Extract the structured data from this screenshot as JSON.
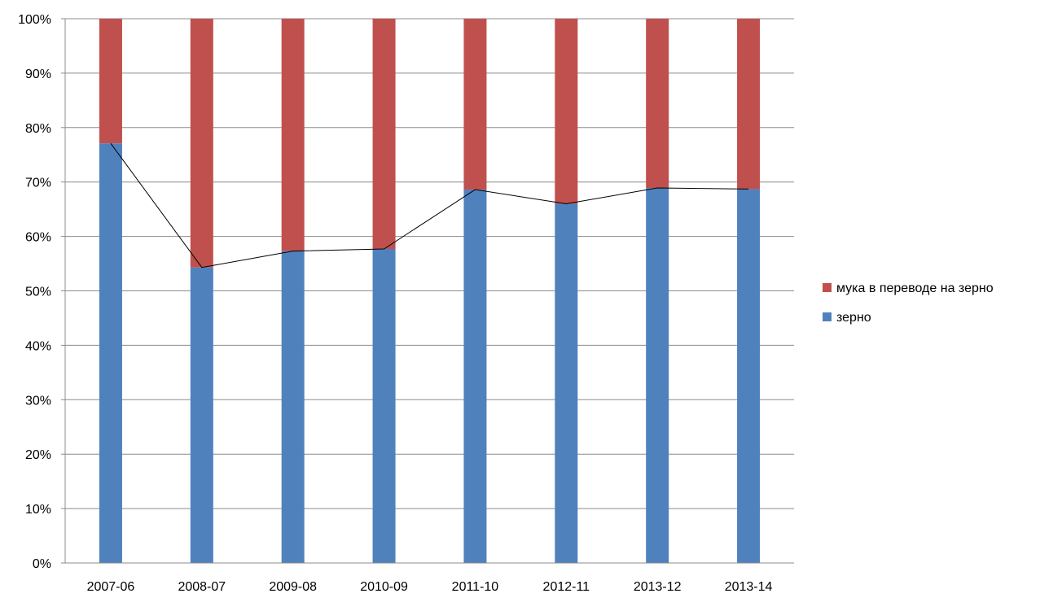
{
  "chart_data": {
    "type": "bar",
    "stacked": true,
    "normalized_percent": true,
    "categories": [
      "2007-06",
      "2008-07",
      "2009-08",
      "2010-09",
      "2011-10",
      "2012-11",
      "2013-12",
      "2013-14"
    ],
    "series": [
      {
        "name": "зерно",
        "color": "#4F81BD",
        "values": [
          77.1,
          54.3,
          57.3,
          57.7,
          68.6,
          66.0,
          68.9,
          68.7
        ]
      },
      {
        "name": "мука в переводе на зерно",
        "color": "#C0504D",
        "values": [
          22.9,
          45.7,
          42.7,
          42.3,
          31.4,
          34.0,
          31.1,
          31.3
        ]
      }
    ],
    "overlay_line": {
      "follows_series": "зерно",
      "color": "#000000"
    },
    "y_ticks": [
      "0%",
      "10%",
      "20%",
      "30%",
      "40%",
      "50%",
      "60%",
      "70%",
      "80%",
      "90%",
      "100%"
    ],
    "ylim": [
      0,
      100
    ],
    "grid": true,
    "legend": {
      "placement": "right",
      "entries": [
        "мука в переводе на зерно",
        "зерно"
      ]
    },
    "title": "",
    "xlabel": "",
    "ylabel": ""
  }
}
